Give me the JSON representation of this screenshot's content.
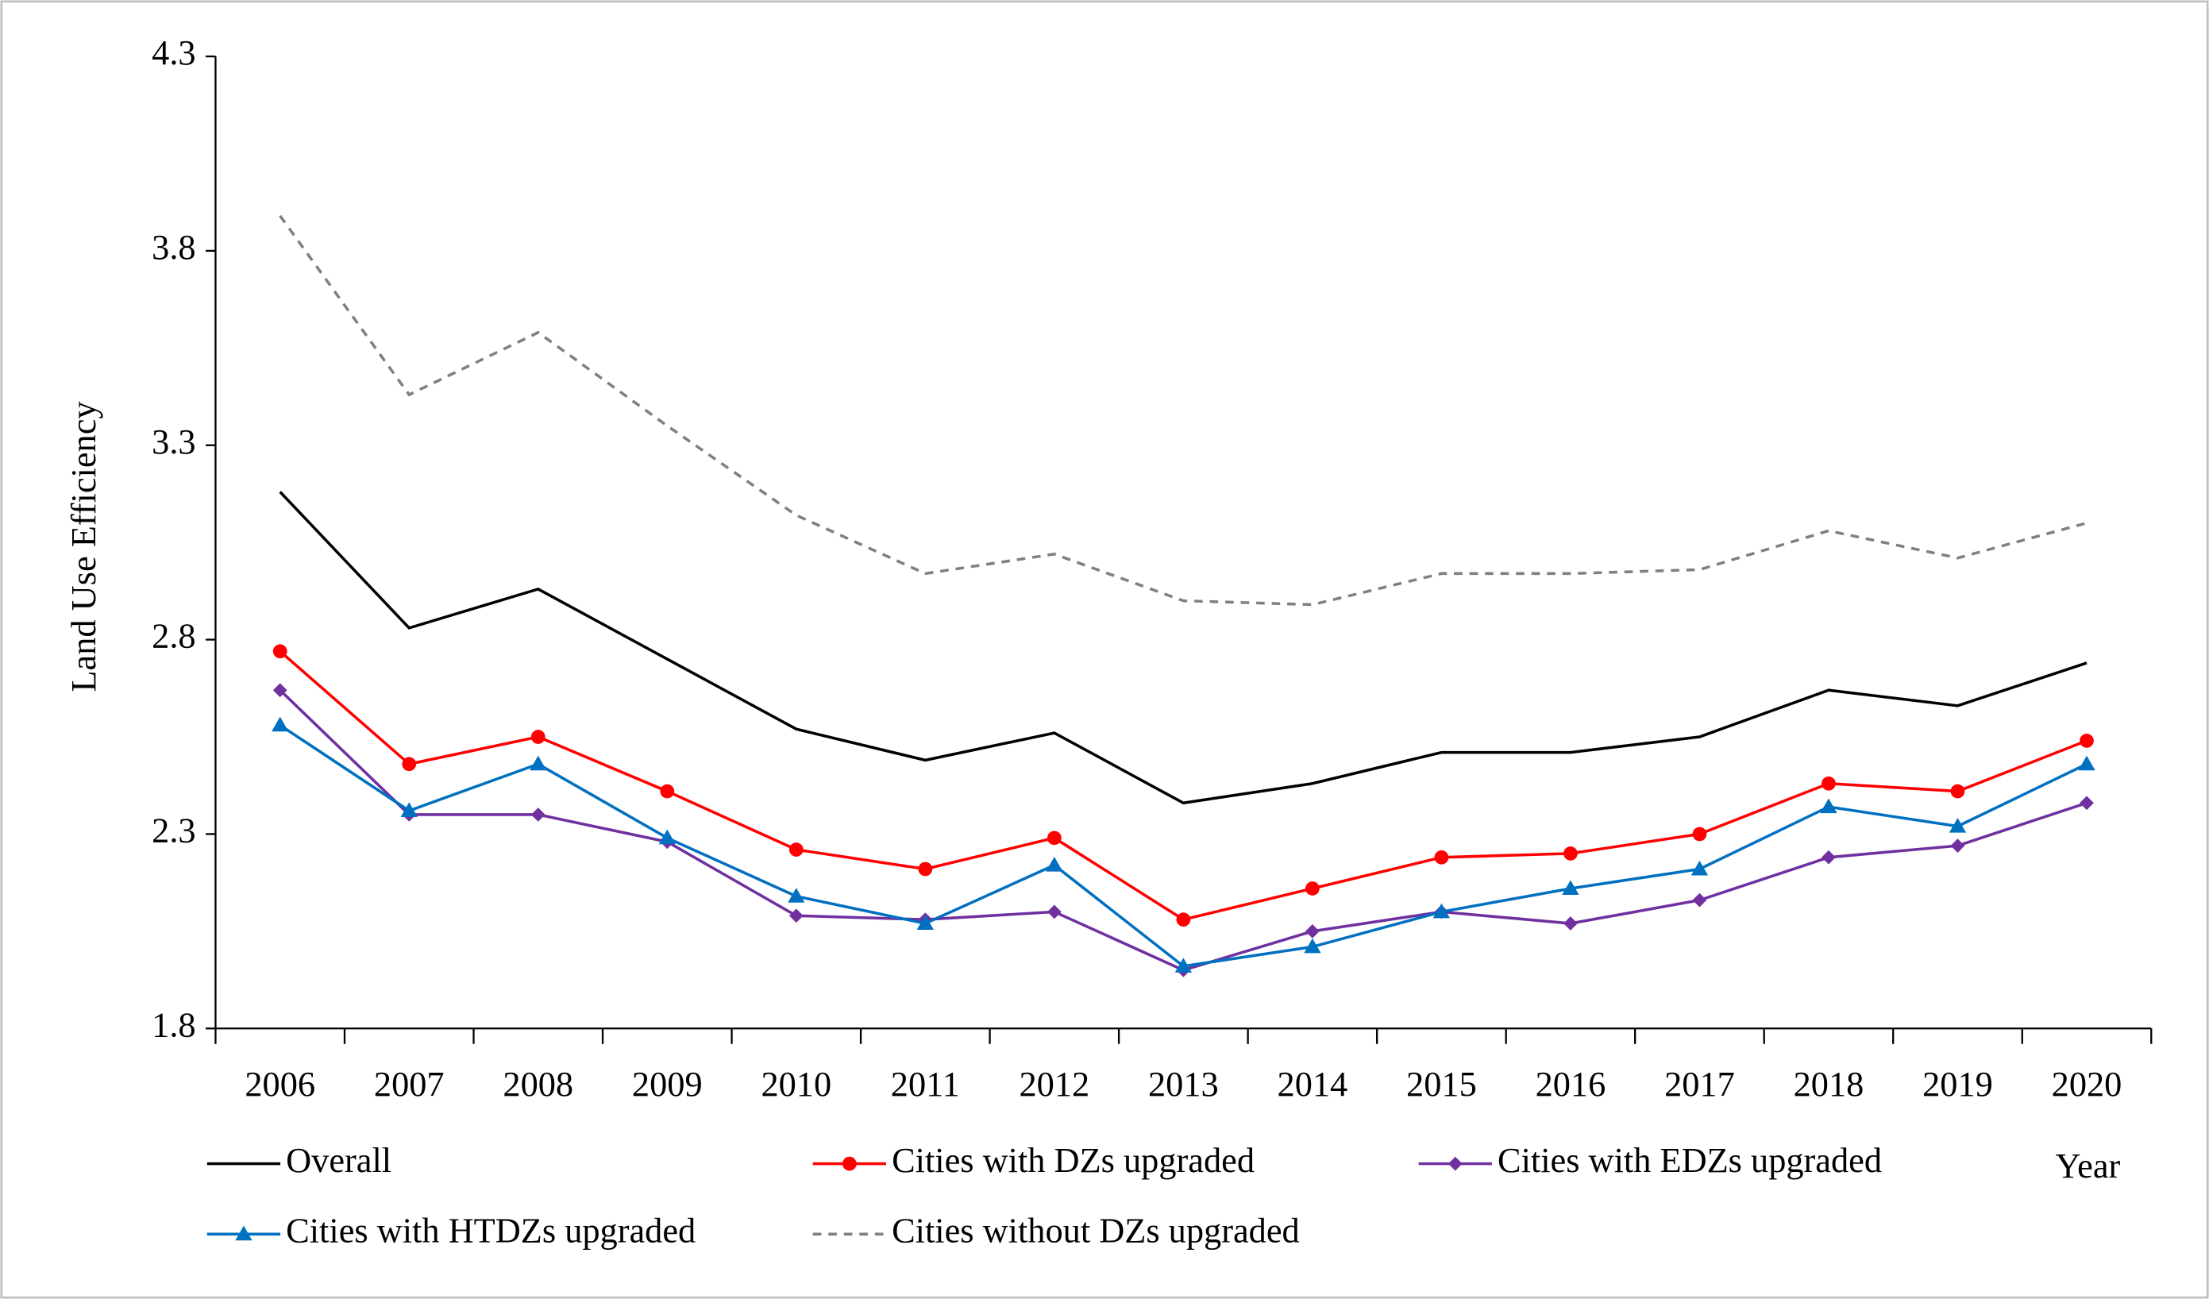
{
  "chart_data": {
    "type": "line",
    "y_label": "Land Use Efficiency",
    "x_label": "Year",
    "categories": [
      "2006",
      "2007",
      "2008",
      "2009",
      "2010",
      "2011",
      "2012",
      "2013",
      "2014",
      "2015",
      "2016",
      "2017",
      "2018",
      "2019",
      "2020"
    ],
    "ylim": [
      1.8,
      4.3
    ],
    "yticks": [
      1.8,
      2.3,
      2.8,
      3.3,
      3.8,
      4.3
    ],
    "grid": false,
    "series": [
      {
        "name": "Overall",
        "color": "#000000",
        "marker": "none",
        "dash": false,
        "values": [
          3.18,
          2.83,
          2.93,
          2.75,
          2.57,
          2.49,
          2.56,
          2.38,
          2.43,
          2.51,
          2.51,
          2.55,
          2.67,
          2.63,
          2.74
        ]
      },
      {
        "name": "Cities with DZs upgraded",
        "color": "#ff0000",
        "marker": "circle",
        "dash": false,
        "values": [
          2.77,
          2.48,
          2.55,
          2.41,
          2.26,
          2.21,
          2.29,
          2.08,
          2.16,
          2.24,
          2.25,
          2.3,
          2.43,
          2.41,
          2.54
        ]
      },
      {
        "name": "Cities with EDZs upgraded",
        "color": "#7030a0",
        "marker": "diamond",
        "dash": false,
        "values": [
          2.67,
          2.35,
          2.35,
          2.28,
          2.09,
          2.08,
          2.1,
          1.95,
          2.05,
          2.1,
          2.07,
          2.13,
          2.24,
          2.27,
          2.38
        ]
      },
      {
        "name": "Cities with HTDZs upgraded",
        "color": "#0070c0",
        "marker": "triangle",
        "dash": false,
        "values": [
          2.58,
          2.36,
          2.48,
          2.29,
          2.14,
          2.07,
          2.22,
          1.96,
          2.01,
          2.1,
          2.16,
          2.21,
          2.37,
          2.32,
          2.48
        ]
      },
      {
        "name": "Cities without DZs upgraded",
        "color": "#808080",
        "marker": "none",
        "dash": true,
        "values": [
          3.89,
          3.43,
          3.59,
          3.35,
          3.12,
          2.97,
          3.02,
          2.9,
          2.89,
          2.97,
          2.97,
          2.98,
          3.08,
          3.01,
          3.1
        ]
      }
    ]
  }
}
